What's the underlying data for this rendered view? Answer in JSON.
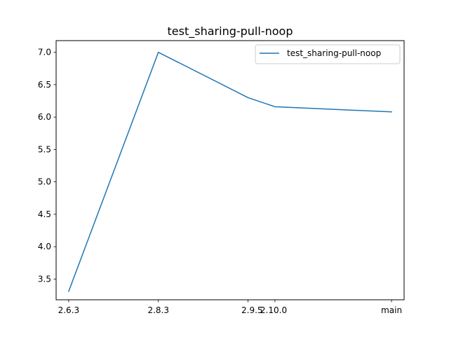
{
  "chart_data": {
    "type": "line",
    "title": "test_sharing-pull-noop",
    "xlabel": "",
    "ylabel": "",
    "categories": [
      "2.6.3",
      "2.8.3",
      "2.9.5",
      "2.10.0",
      "main"
    ],
    "x": [
      0,
      1,
      2,
      2.3,
      3.6
    ],
    "series": [
      {
        "name": "test_sharing-pull-noop",
        "values": [
          3.31,
          7.0,
          6.3,
          6.16,
          6.08
        ],
        "color": "#1f77b4"
      }
    ],
    "xlim": [
      -0.14,
      3.74
    ],
    "ylim": [
      3.18,
      7.18
    ],
    "yticks": [
      3.5,
      4.0,
      4.5,
      5.0,
      5.5,
      6.0,
      6.5,
      7.0
    ],
    "ytick_labels": [
      "3.5",
      "4.0",
      "4.5",
      "5.0",
      "5.5",
      "6.0",
      "6.5",
      "7.0"
    ],
    "grid": false,
    "legend_position": "top-right"
  }
}
